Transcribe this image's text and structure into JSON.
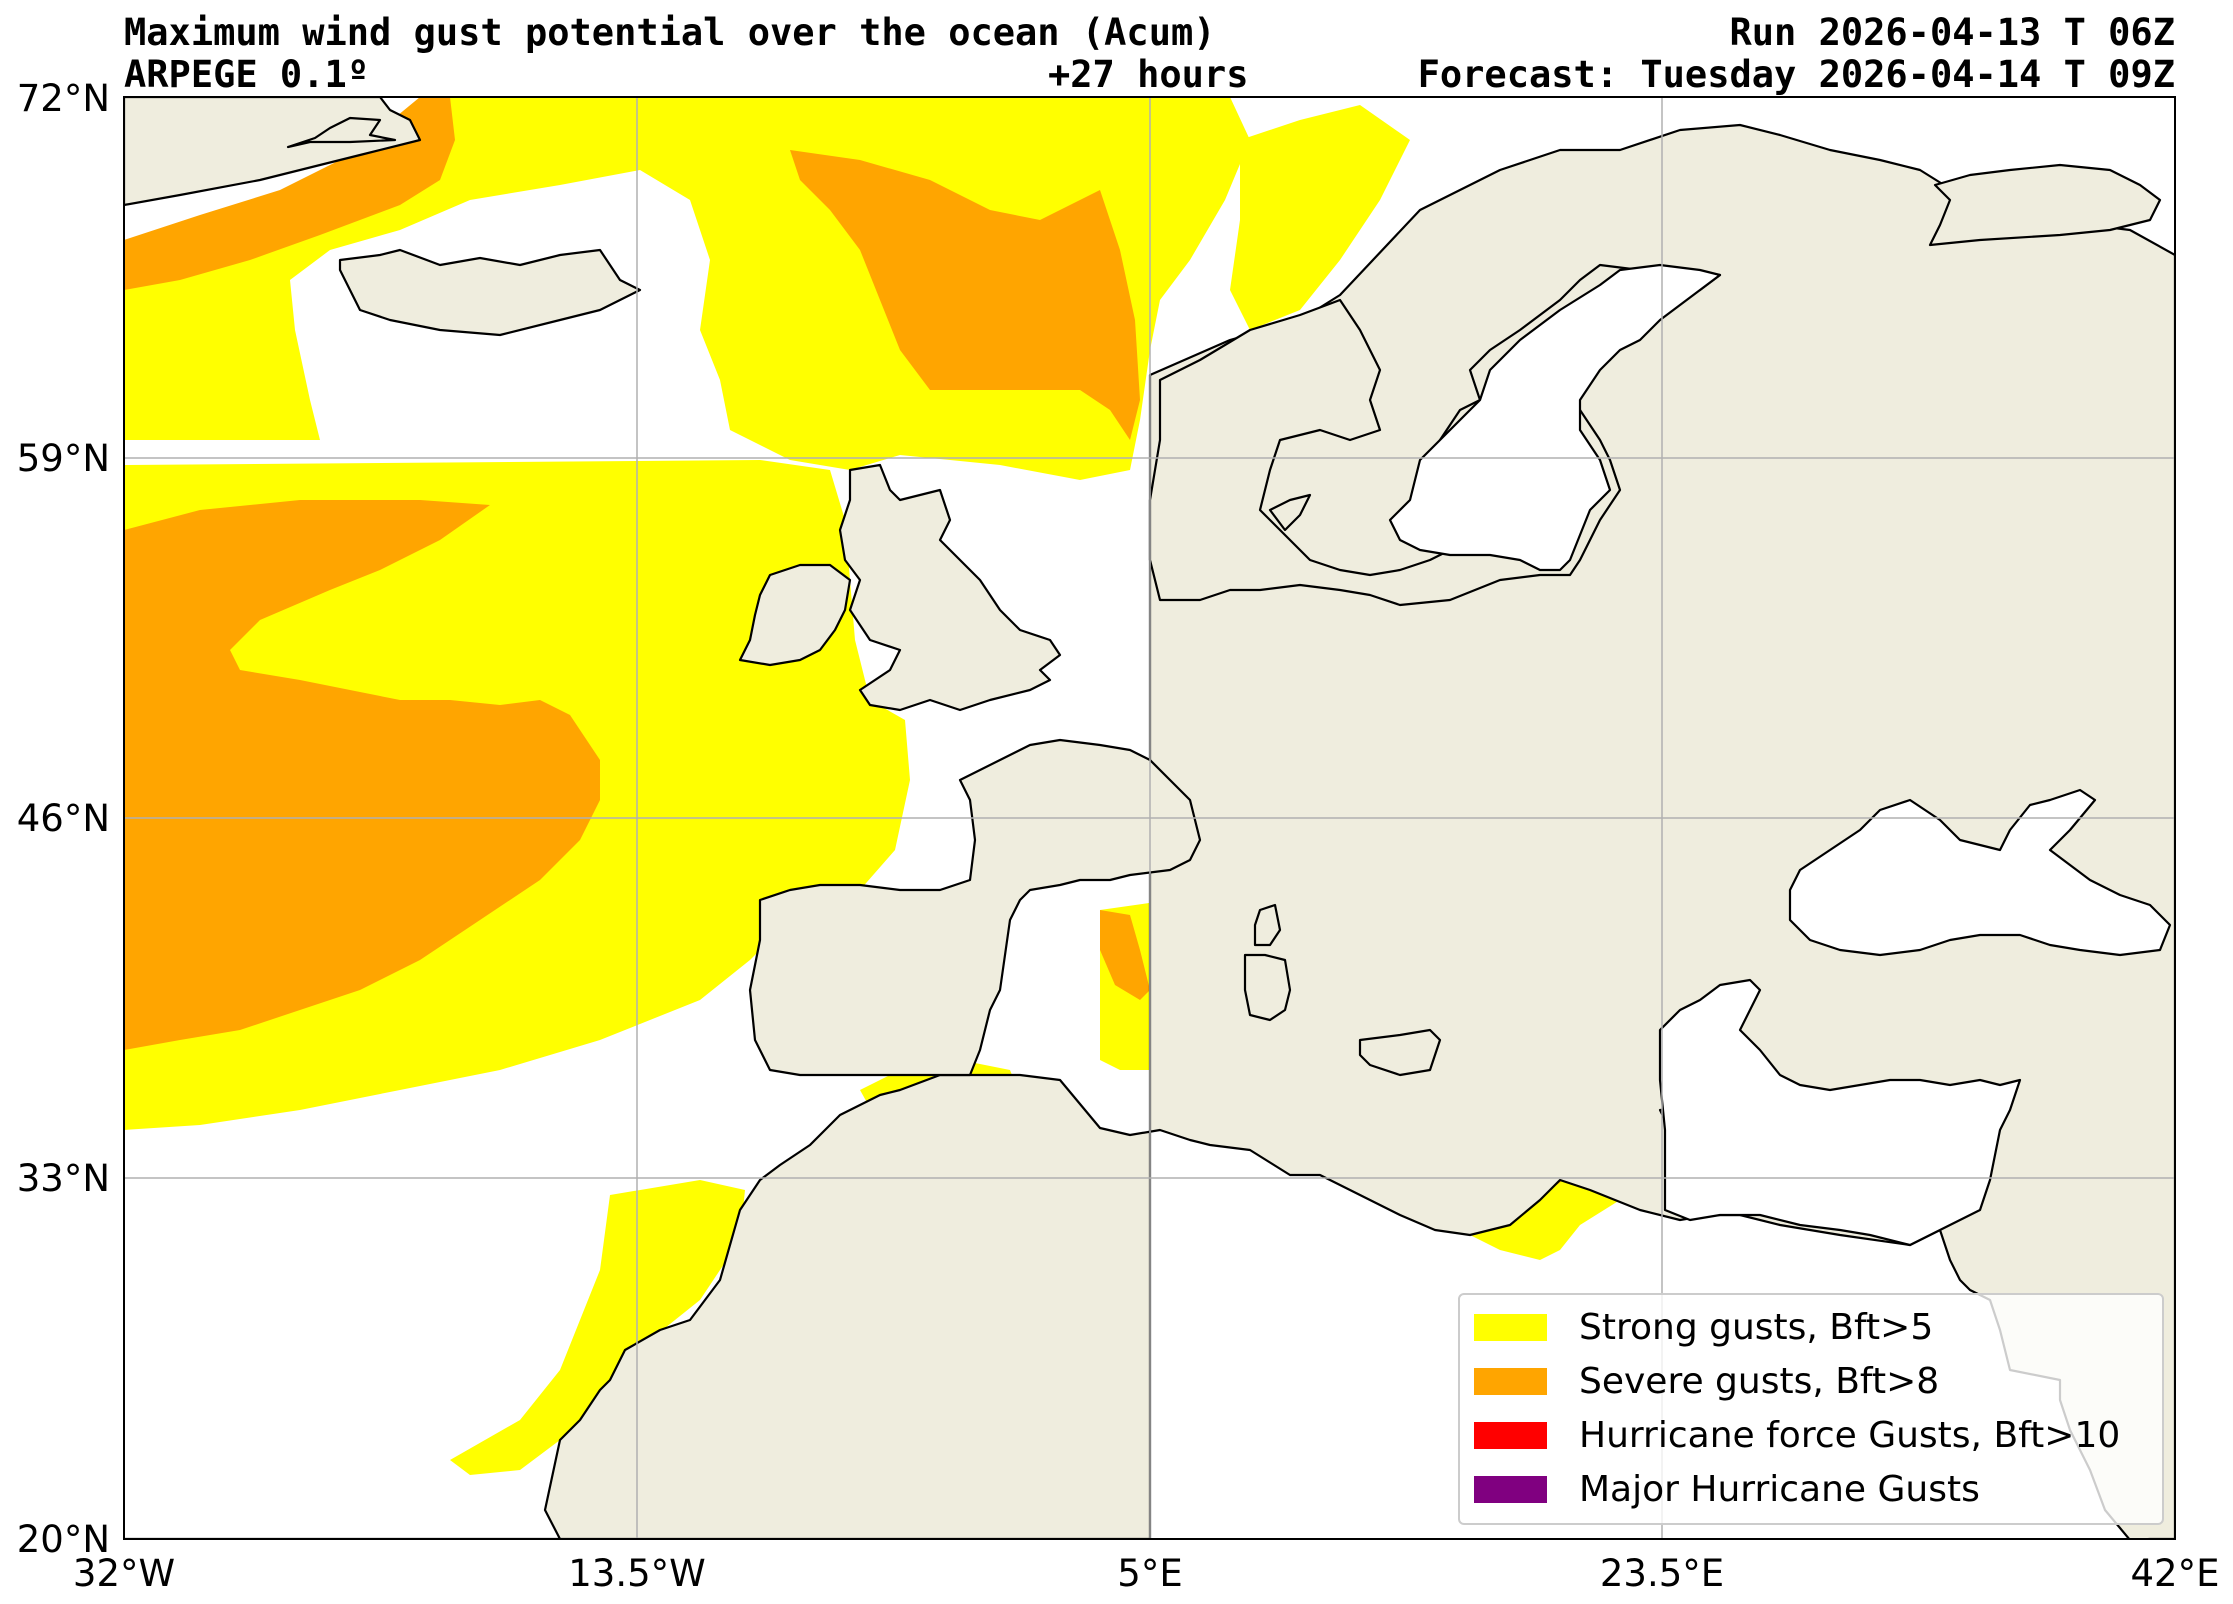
{
  "header": {
    "title": "Maximum wind gust potential over the ocean (Acum)",
    "model": "ARPEGE 0.1º",
    "lead": "+27 hours",
    "run": "Run 2026-04-13 T 06Z",
    "forecast": "Forecast: Tuesday 2026-04-14 T 09Z"
  },
  "axes": {
    "y_ticks": [
      "72°N",
      "59°N",
      "46°N",
      "33°N",
      "20°N"
    ],
    "x_ticks": [
      "32°W",
      "13.5°W",
      "5°E",
      "23.5°E",
      "42°E"
    ],
    "lat_range": [
      20,
      72
    ],
    "lon_range": [
      -32,
      42
    ],
    "grid": true
  },
  "legend": {
    "items": [
      {
        "label": "Strong gusts, Bft>5",
        "color": "#ffff00"
      },
      {
        "label": "Severe gusts, Bft>8",
        "color": "#ffa500"
      },
      {
        "label": "Hurricane force Gusts, Bft>10",
        "color": "#ff0000"
      },
      {
        "label": "Major Hurricane Gusts",
        "color": "#800080"
      }
    ],
    "placement": "lower-right"
  },
  "colors": {
    "land": "#efedde",
    "ocean": "#ffffff",
    "strong": "#ffff00",
    "severe": "#ffa500",
    "grid": "#b0b0b0"
  }
}
